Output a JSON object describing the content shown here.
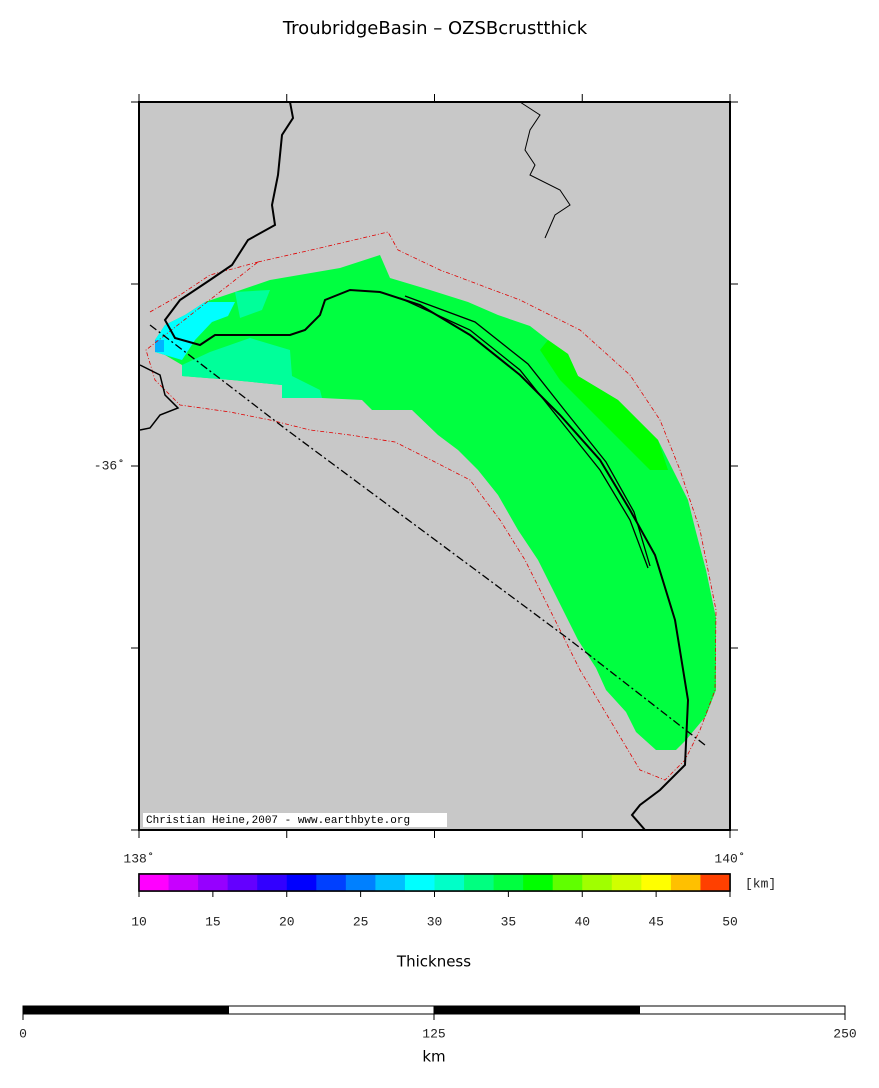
{
  "chart_data": {
    "type": "map",
    "title": "TroubridgeBasin – OZSBcrustthick",
    "credit": "Christian Heine,2007 - www.earthbyte.org",
    "xlim": [
      138,
      140
    ],
    "ylim": [
      -37,
      -35
    ],
    "xticks": [
      {
        "value": 138,
        "label": "138˚"
      },
      {
        "value": 140,
        "label": "140˚"
      }
    ],
    "yticks": [
      {
        "value": -36,
        "label": "-36˚"
      }
    ],
    "xticks_minor": [
      138.5,
      139,
      139.5
    ],
    "yticks_minor": [
      -35,
      -35.5,
      -36.5,
      -37
    ],
    "colorbar": {
      "label": "Thickness",
      "unit": "[km]",
      "range": [
        10,
        50
      ],
      "ticks": [
        10,
        15,
        20,
        25,
        30,
        35,
        40,
        45,
        50
      ],
      "colors": [
        "#ff00ff",
        "#c800ff",
        "#9600ff",
        "#6400ff",
        "#3200ff",
        "#0000ff",
        "#0040ff",
        "#0080ff",
        "#00c0ff",
        "#00ffff",
        "#00ffc8",
        "#00ff80",
        "#00ff40",
        "#00ff00",
        "#60ff00",
        "#a0ff00",
        "#d0ff00",
        "#ffff00",
        "#ffc000",
        "#ff4000"
      ]
    },
    "scalebar": {
      "unit": "km",
      "ticks": [
        0,
        125,
        250
      ]
    }
  }
}
